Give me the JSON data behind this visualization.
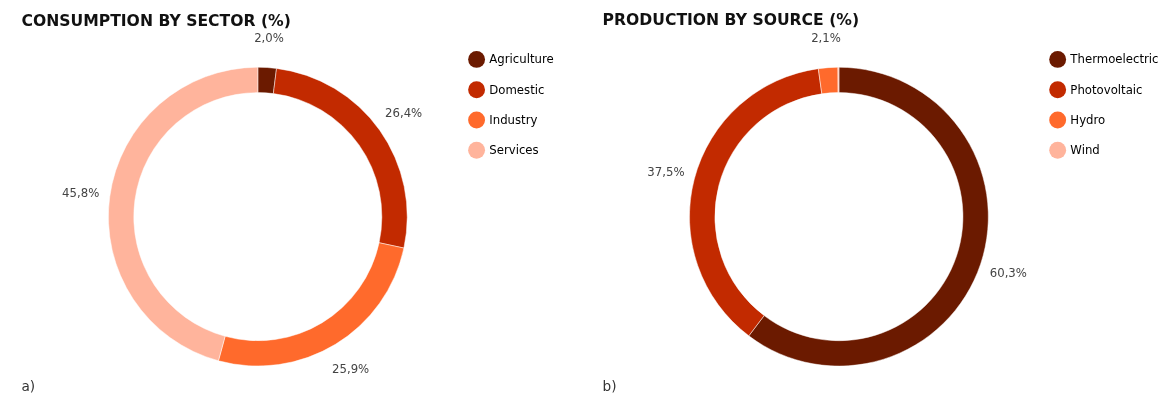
{
  "chart_data": [
    {
      "type": "donut",
      "title": "CONSUMPTION BY SECTOR (%)",
      "categories": [
        "Agriculture",
        "Domestic",
        "Industry",
        "Services"
      ],
      "values": [
        2.0,
        26.4,
        25.9,
        45.8
      ],
      "colors": [
        "#6b1a00",
        "#c22a00",
        "#ff6a2c",
        "#ffb49c"
      ],
      "value_labels": [
        "2,0%",
        "26,4%",
        "25,9%",
        "45,8%"
      ],
      "legend": "top right",
      "annotations": [
        "a)"
      ]
    },
    {
      "type": "donut",
      "title": "PRODUCTION BY SOURCE (%)",
      "categories": [
        "Thermoelectric",
        "Photovoltaic",
        "Hydro",
        "Wind"
      ],
      "values": [
        60.3,
        37.5,
        2.1,
        0.1
      ],
      "colors": [
        "#6b1a00",
        "#c22a00",
        "#ff6a2c",
        "#ffb49c"
      ],
      "value_labels": [
        "60,3%",
        "37,5%",
        "2,1%",
        null
      ],
      "legend": "top right",
      "annotations": [
        "b)"
      ]
    }
  ]
}
